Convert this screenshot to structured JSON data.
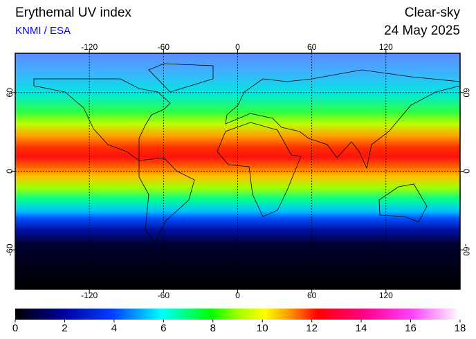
{
  "header": {
    "title": "Erythemal UV index",
    "source": "KNMI / ESA",
    "sky": "Clear-sky",
    "date": "24 May 2025"
  },
  "map": {
    "lonlim": [
      -180,
      180
    ],
    "latlim": [
      -90,
      90
    ],
    "lon_ticks": [
      -120,
      -60,
      0,
      60,
      120
    ],
    "lat_ticks": [
      60,
      0,
      -60
    ]
  },
  "colorbar": {
    "range": [
      0,
      18
    ],
    "ticks": [
      0,
      2,
      4,
      6,
      8,
      10,
      12,
      14,
      16,
      18
    ]
  }
}
